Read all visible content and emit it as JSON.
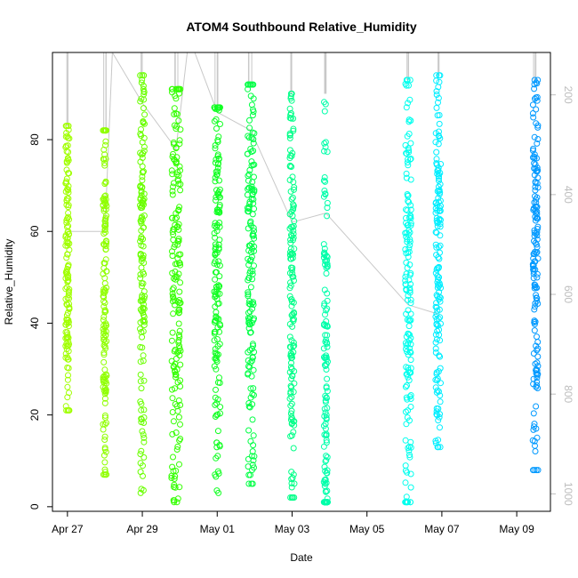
{
  "chart_data": {
    "type": "scatter",
    "title": "ATOM4 Southbound Relative_Humidity",
    "xlabel": "Date",
    "ylabel": "Relative_Humidity",
    "x_tick_labels": [
      "Apr 27",
      "Apr 29",
      "May 01",
      "May 03",
      "May 05",
      "May 07",
      "May 09"
    ],
    "x_tick_days": [
      27,
      29,
      31,
      33,
      35,
      37,
      39
    ],
    "xlim_days": [
      26.6,
      39.9
    ],
    "ylim": [
      -1,
      99
    ],
    "y_ticks": [
      0,
      20,
      40,
      60,
      80
    ],
    "y_tick_labels": [
      "0",
      "20",
      "40",
      "60",
      "80"
    ],
    "right_axis": {
      "label": "",
      "color": "#bdbdbd",
      "ticks": [
        200,
        400,
        600,
        800,
        1000
      ],
      "tick_labels": [
        "200",
        "400",
        "600",
        "800",
        "1000"
      ],
      "range_reversed": [
        115,
        1035
      ]
    },
    "grid": false,
    "series": [
      {
        "name": "Apr 27",
        "center_day": 27.0,
        "spread": 0.05,
        "min": 21,
        "max": 83,
        "mean": 52,
        "color": "#a0ff00"
      },
      {
        "name": "Apr 28",
        "center_day": 28.0,
        "spread": 0.05,
        "min": 7,
        "max": 82,
        "mean": 48,
        "color": "#8fff00"
      },
      {
        "name": "Apr 29",
        "center_day": 29.0,
        "spread": 0.06,
        "min": 3,
        "max": 94,
        "mean": 55,
        "color": "#6aff00"
      },
      {
        "name": "Apr 30",
        "center_day": 29.9,
        "spread": 0.12,
        "min": 1,
        "max": 91,
        "mean": 50,
        "color": "#33ff00"
      },
      {
        "name": "May 01",
        "center_day": 31.0,
        "spread": 0.08,
        "min": 3,
        "max": 87,
        "mean": 55,
        "color": "#11ff22"
      },
      {
        "name": "May 02",
        "center_day": 31.9,
        "spread": 0.09,
        "min": 5,
        "max": 92,
        "mean": 55,
        "color": "#00ff44"
      },
      {
        "name": "May 03",
        "center_day": 33.0,
        "spread": 0.06,
        "min": 2,
        "max": 90,
        "mean": 45,
        "color": "#00ff88"
      },
      {
        "name": "May 04",
        "center_day": 33.9,
        "spread": 0.05,
        "min": 1,
        "max": 90,
        "mean": 25,
        "color": "#00ffaa"
      },
      {
        "name": "May 06",
        "center_day": 36.1,
        "spread": 0.08,
        "min": 1,
        "max": 93,
        "mean": 45,
        "color": "#00ffee"
      },
      {
        "name": "May 07",
        "center_day": 36.9,
        "spread": 0.07,
        "min": 13,
        "max": 94,
        "mean": 60,
        "color": "#00eeff"
      },
      {
        "name": "May 09",
        "center_day": 39.5,
        "spread": 0.07,
        "min": 8,
        "max": 93,
        "mean": 50,
        "color": "#0099ff"
      }
    ]
  }
}
